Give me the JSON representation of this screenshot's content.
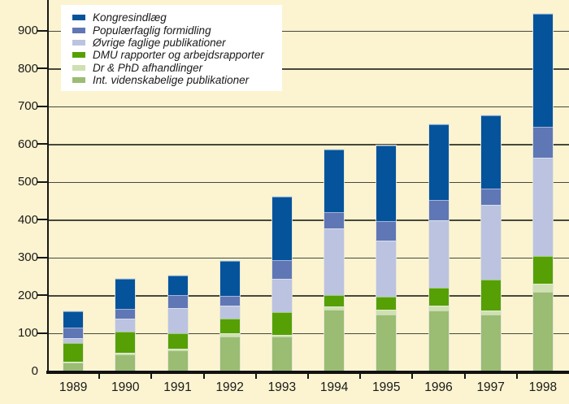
{
  "chart_data": {
    "type": "bar",
    "subtype": "stacked-vertical",
    "title": "",
    "xlabel": "",
    "ylabel": "",
    "categories": [
      "1989",
      "1990",
      "1991",
      "1992",
      "1993",
      "1994",
      "1995",
      "1996",
      "1997",
      "1998"
    ],
    "series": [
      {
        "name": "Int. videnskabelige publikationer",
        "color": "#9bbc73",
        "values": [
          21,
          43,
          54,
          90,
          90,
          162,
          148,
          160,
          148,
          209
        ]
      },
      {
        "name": "Dr & PhD afhandlinger",
        "color": "#cfe0b2",
        "values": [
          3,
          4,
          5,
          9,
          4,
          8,
          14,
          12,
          12,
          20
        ]
      },
      {
        "name": "DMU rapporter og arbejdsrapporter",
        "color": "#56a005",
        "values": [
          48,
          57,
          40,
          38,
          61,
          31,
          34,
          47,
          81,
          74
        ]
      },
      {
        "name": "Øvrige faglige publikationer",
        "color": "#bcc3e0",
        "values": [
          15,
          33,
          67,
          36,
          89,
          176,
          149,
          179,
          198,
          260
        ]
      },
      {
        "name": "Populærfaglig formidling",
        "color": "#6077b5",
        "values": [
          28,
          26,
          34,
          24,
          48,
          42,
          50,
          53,
          42,
          83
        ]
      },
      {
        "name": "Kongresindlæg",
        "color": "#05539b",
        "values": [
          43,
          81,
          52,
          94,
          168,
          166,
          201,
          201,
          194,
          299
        ]
      }
    ],
    "stack_order": "first-series-at-bottom",
    "totals": [
      158,
      244,
      252,
      291,
      460,
      585,
      596,
      652,
      675,
      945
    ],
    "legend": {
      "position": "top-left",
      "background": "#ffffff",
      "order_top_to_bottom": [
        "Kongresindlæg",
        "Populærfaglig formidling",
        "Øvrige faglige publikationer",
        "DMU rapporter og arbejdsrapporter",
        "Dr & PhD afhandlinger",
        "Int. videnskabelige publikationer"
      ]
    },
    "y_axis": {
      "min": 0,
      "max": 950,
      "tick_interval": 100,
      "tick_labels": [
        "0",
        "100",
        "200",
        "300",
        "400",
        "500",
        "600",
        "700",
        "800",
        "900"
      ]
    },
    "x_axis": {
      "labels": [
        "1989",
        "1990",
        "1991",
        "1992",
        "1993",
        "1994",
        "1995",
        "1996",
        "1997",
        "1998"
      ]
    },
    "grid": true,
    "colors": {
      "background": "#fcf4d0",
      "gridline": "#47473b",
      "axis": "#111111",
      "text": "#1a1a1a"
    }
  }
}
